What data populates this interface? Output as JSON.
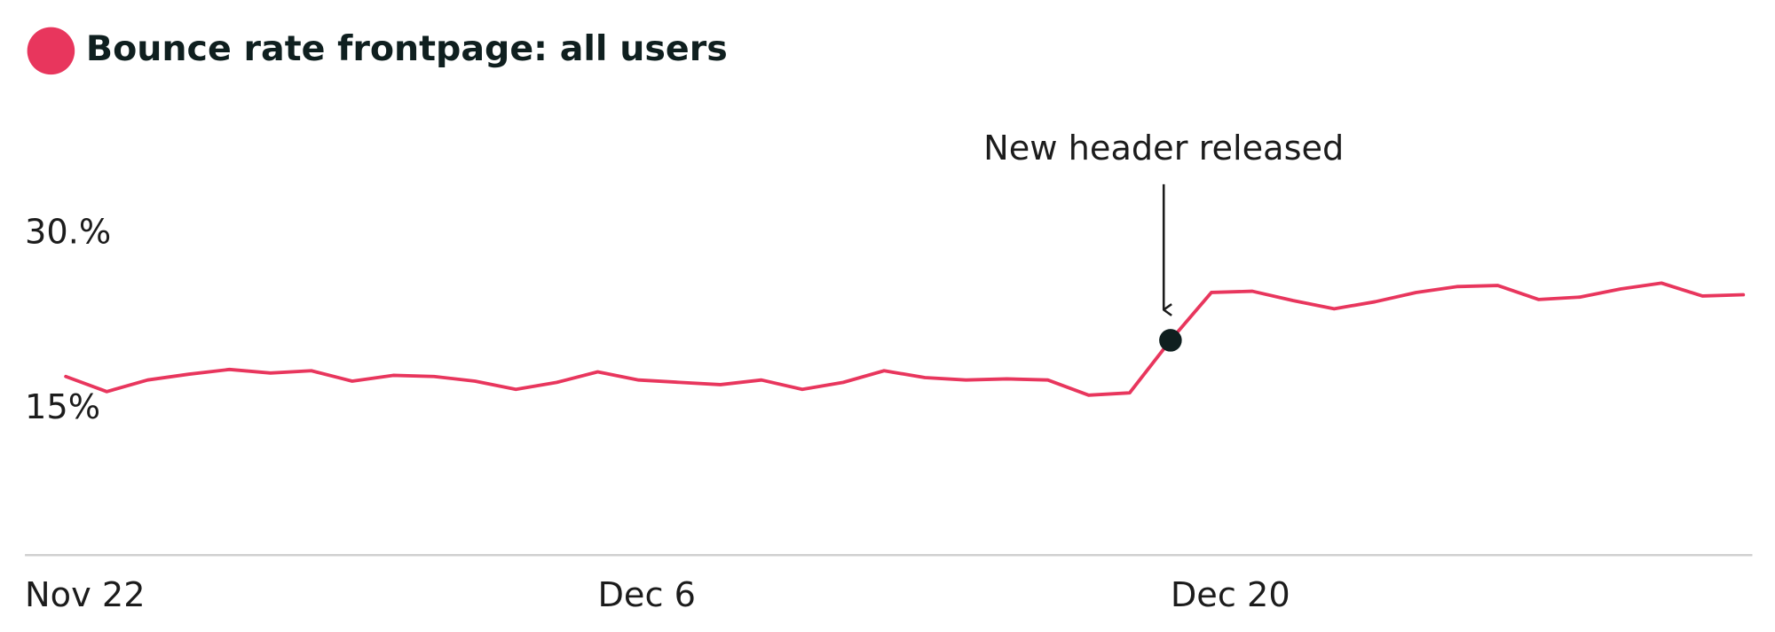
{
  "chart_data": {
    "type": "line",
    "categories": [
      "Nov 22",
      null,
      null,
      null,
      null,
      null,
      null,
      null,
      null,
      null,
      null,
      null,
      null,
      null,
      "Dec 6",
      null,
      null,
      null,
      null,
      null,
      null,
      null,
      null,
      null,
      null,
      null,
      null,
      null,
      "Dec 20",
      null,
      null,
      null,
      null,
      null,
      null,
      null,
      null,
      null,
      null,
      null,
      null,
      null,
      null
    ],
    "series": [
      {
        "name": "Bounce rate frontpage: all users",
        "color": "#e8365d",
        "values": [
          null,
          17.8,
          16.5,
          17.5,
          18.0,
          18.4,
          18.1,
          18.3,
          17.4,
          17.9,
          17.8,
          17.4,
          16.7,
          17.3,
          18.2,
          17.5,
          17.3,
          17.1,
          17.5,
          16.7,
          17.3,
          18.3,
          17.7,
          17.5,
          17.6,
          17.5,
          16.2,
          16.4,
          20.9,
          25.0,
          25.1,
          24.3,
          23.6,
          24.2,
          25.0,
          25.5,
          25.6,
          24.4,
          24.6,
          25.3,
          25.8,
          24.7,
          24.8
        ]
      }
    ],
    "ylim": [
      2.5,
      37.5
    ],
    "yticks": [
      {
        "value": 30,
        "label": "30.%"
      },
      {
        "value": 15,
        "label": "15%"
      }
    ],
    "annotations": [
      {
        "text": "New header released",
        "x": "Dec 20"
      }
    ]
  }
}
